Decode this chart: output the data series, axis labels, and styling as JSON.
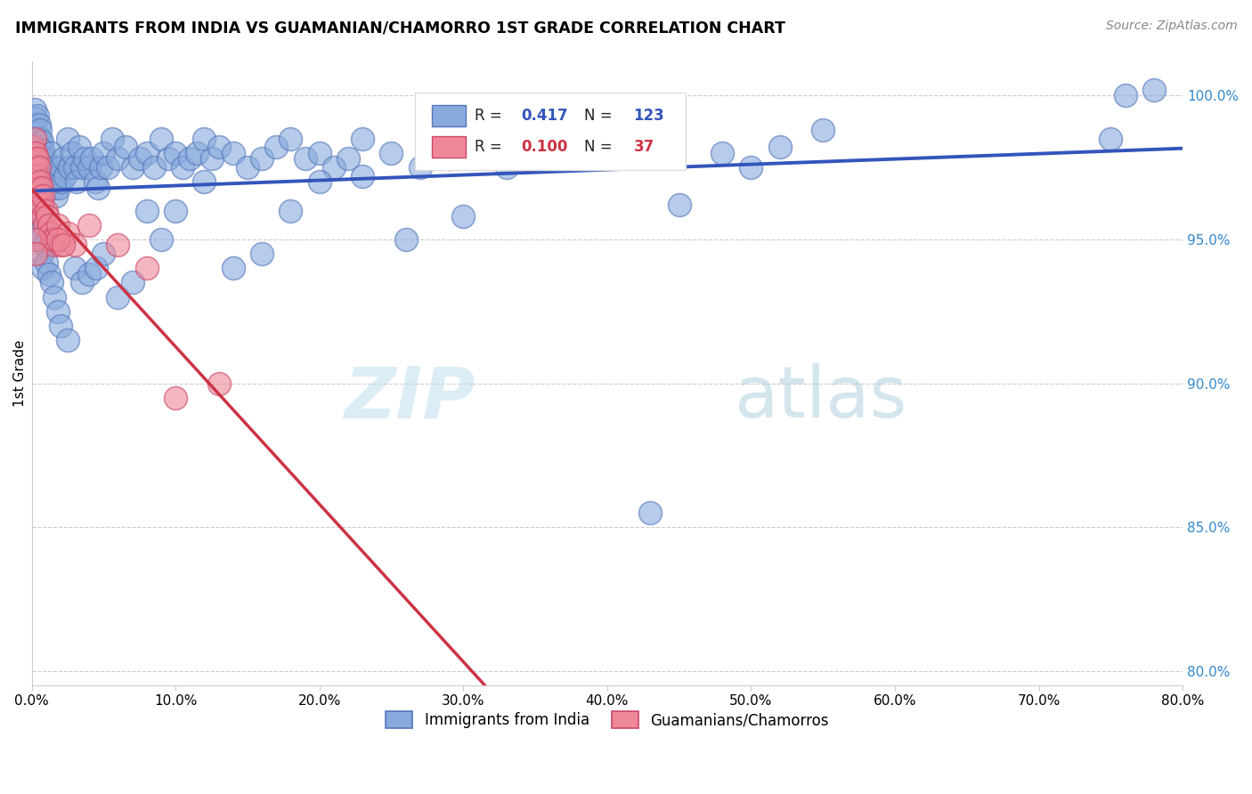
{
  "title": "IMMIGRANTS FROM INDIA VS GUAMANIAN/CHAMORRO 1ST GRADE CORRELATION CHART",
  "source": "Source: ZipAtlas.com",
  "ylabel": "1st Grade",
  "xlim": [
    0.0,
    0.8
  ],
  "ylim": [
    0.795,
    1.012
  ],
  "x_ticks": [
    0.0,
    0.1,
    0.2,
    0.3,
    0.4,
    0.5,
    0.6,
    0.7,
    0.8
  ],
  "x_tick_labels": [
    "0.0%",
    "10.0%",
    "20.0%",
    "30.0%",
    "40.0%",
    "50.0%",
    "60.0%",
    "70.0%",
    "80.0%"
  ],
  "y_ticks": [
    0.8,
    0.85,
    0.9,
    0.95,
    1.0
  ],
  "y_tick_labels": [
    "80.0%",
    "85.0%",
    "90.0%",
    "95.0%",
    "100.0%"
  ],
  "grid_color": "#cccccc",
  "background_color": "#ffffff",
  "blue_color": "#88AADD",
  "pink_color": "#EE8899",
  "blue_edge_color": "#5577BB",
  "pink_edge_color": "#CC4466",
  "blue_line_color": "#3355BB",
  "pink_line_color": "#CC3344",
  "legend_R_blue": "0.417",
  "legend_N_blue": "123",
  "legend_R_pink": "0.100",
  "legend_N_pink": "37",
  "legend_label_blue": "Immigrants from India",
  "legend_label_pink": "Guamanians/Chamorros",
  "watermark_zip": "ZIP",
  "watermark_atlas": "atlas",
  "watermark_color_zip": "#BBDDEE",
  "watermark_color_atlas": "#AACCDD",
  "blue_scatter_x": [
    0.001,
    0.002,
    0.002,
    0.003,
    0.003,
    0.004,
    0.004,
    0.005,
    0.005,
    0.006,
    0.006,
    0.007,
    0.007,
    0.008,
    0.008,
    0.009,
    0.009,
    0.01,
    0.01,
    0.011,
    0.012,
    0.013,
    0.014,
    0.015,
    0.015,
    0.016,
    0.017,
    0.018,
    0.019,
    0.02,
    0.021,
    0.022,
    0.023,
    0.025,
    0.026,
    0.028,
    0.03,
    0.031,
    0.033,
    0.035,
    0.037,
    0.04,
    0.042,
    0.044,
    0.046,
    0.048,
    0.05,
    0.053,
    0.056,
    0.06,
    0.065,
    0.07,
    0.075,
    0.08,
    0.085,
    0.09,
    0.095,
    0.1,
    0.105,
    0.11,
    0.115,
    0.12,
    0.125,
    0.13,
    0.14,
    0.15,
    0.16,
    0.17,
    0.18,
    0.19,
    0.2,
    0.21,
    0.22,
    0.23,
    0.25,
    0.27,
    0.29,
    0.31,
    0.33,
    0.35,
    0.001,
    0.002,
    0.003,
    0.004,
    0.005,
    0.006,
    0.007,
    0.008,
    0.009,
    0.01,
    0.012,
    0.014,
    0.016,
    0.018,
    0.02,
    0.025,
    0.03,
    0.035,
    0.04,
    0.045,
    0.05,
    0.06,
    0.07,
    0.08,
    0.09,
    0.1,
    0.12,
    0.14,
    0.16,
    0.18,
    0.2,
    0.23,
    0.26,
    0.3,
    0.43,
    0.45,
    0.48,
    0.5,
    0.52,
    0.55,
    0.75,
    0.76,
    0.78
  ],
  "blue_scatter_y": [
    0.99,
    0.985,
    0.995,
    0.988,
    0.992,
    0.98,
    0.993,
    0.982,
    0.99,
    0.985,
    0.988,
    0.978,
    0.984,
    0.975,
    0.981,
    0.972,
    0.978,
    0.968,
    0.974,
    0.97,
    0.975,
    0.972,
    0.98,
    0.975,
    0.968,
    0.97,
    0.965,
    0.972,
    0.968,
    0.975,
    0.97,
    0.978,
    0.972,
    0.985,
    0.975,
    0.98,
    0.975,
    0.97,
    0.982,
    0.975,
    0.978,
    0.975,
    0.978,
    0.97,
    0.968,
    0.975,
    0.98,
    0.975,
    0.985,
    0.978,
    0.982,
    0.975,
    0.978,
    0.98,
    0.975,
    0.985,
    0.978,
    0.98,
    0.975,
    0.978,
    0.98,
    0.985,
    0.978,
    0.982,
    0.98,
    0.975,
    0.978,
    0.982,
    0.985,
    0.978,
    0.98,
    0.975,
    0.978,
    0.985,
    0.98,
    0.975,
    0.978,
    0.982,
    0.975,
    0.98,
    0.963,
    0.96,
    0.958,
    0.955,
    0.952,
    0.95,
    0.945,
    0.94,
    0.948,
    0.942,
    0.938,
    0.935,
    0.93,
    0.925,
    0.92,
    0.915,
    0.94,
    0.935,
    0.938,
    0.94,
    0.945,
    0.93,
    0.935,
    0.96,
    0.95,
    0.96,
    0.97,
    0.94,
    0.945,
    0.96,
    0.97,
    0.972,
    0.95,
    0.958,
    0.855,
    0.962,
    0.98,
    0.975,
    0.982,
    0.988,
    0.985,
    1.0,
    1.002
  ],
  "pink_scatter_x": [
    0.001,
    0.001,
    0.002,
    0.002,
    0.003,
    0.003,
    0.004,
    0.004,
    0.005,
    0.005,
    0.006,
    0.006,
    0.007,
    0.007,
    0.008,
    0.008,
    0.009,
    0.01,
    0.011,
    0.012,
    0.013,
    0.014,
    0.015,
    0.016,
    0.018,
    0.02,
    0.025,
    0.03,
    0.002,
    0.003,
    0.018,
    0.022,
    0.04,
    0.06,
    0.08,
    0.1,
    0.13
  ],
  "pink_scatter_y": [
    0.982,
    0.96,
    0.978,
    0.985,
    0.975,
    0.98,
    0.972,
    0.978,
    0.968,
    0.975,
    0.965,
    0.97,
    0.962,
    0.968,
    0.958,
    0.965,
    0.955,
    0.96,
    0.958,
    0.955,
    0.952,
    0.95,
    0.948,
    0.95,
    0.955,
    0.948,
    0.952,
    0.948,
    0.95,
    0.945,
    0.95,
    0.948,
    0.955,
    0.948,
    0.94,
    0.895,
    0.9
  ]
}
